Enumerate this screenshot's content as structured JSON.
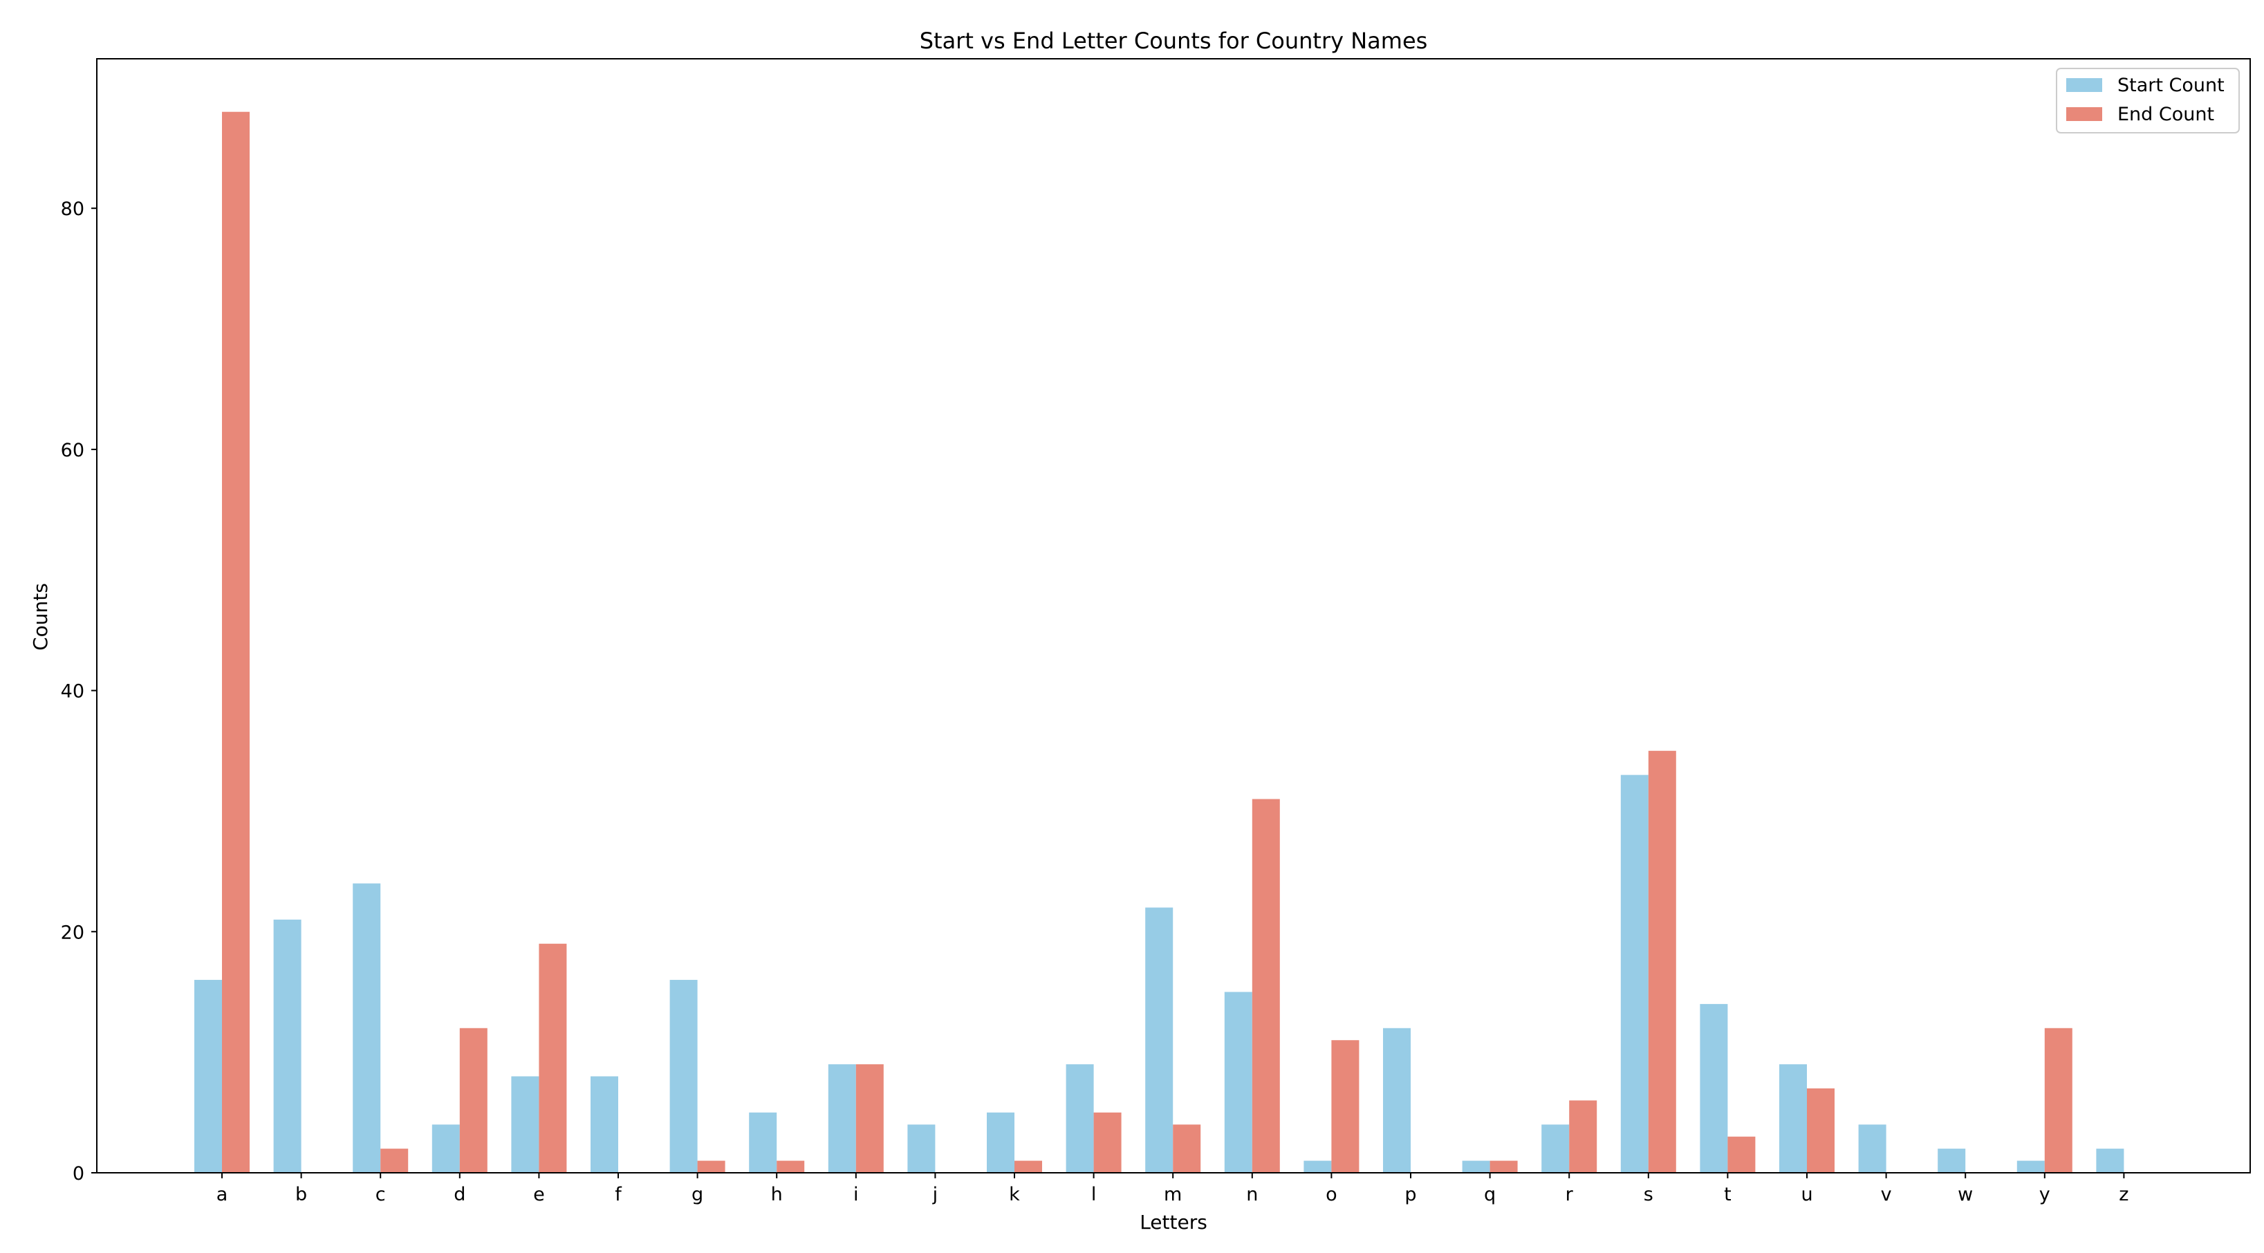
{
  "chart_data": {
    "type": "bar",
    "title": "Start vs End Letter Counts for Country Names",
    "xlabel": "Letters",
    "ylabel": "Counts",
    "categories": [
      "a",
      "b",
      "c",
      "d",
      "e",
      "f",
      "g",
      "h",
      "i",
      "j",
      "k",
      "l",
      "m",
      "n",
      "o",
      "p",
      "q",
      "r",
      "s",
      "t",
      "u",
      "v",
      "w",
      "y",
      "z"
    ],
    "series": [
      {
        "name": "Start Count",
        "color": "#97cce6",
        "values": [
          16,
          21,
          24,
          4,
          8,
          8,
          16,
          5,
          9,
          4,
          5,
          9,
          22,
          15,
          1,
          12,
          1,
          4,
          33,
          14,
          9,
          4,
          2,
          1,
          2
        ]
      },
      {
        "name": "End Count",
        "color": "#e88879",
        "values": [
          88,
          0,
          2,
          12,
          19,
          0,
          1,
          1,
          9,
          0,
          1,
          5,
          4,
          31,
          11,
          0,
          1,
          6,
          35,
          3,
          7,
          0,
          0,
          12,
          0
        ]
      }
    ],
    "ylim": [
      0,
      92.4
    ],
    "yticks": [
      0,
      20,
      40,
      60,
      80
    ],
    "grid": false,
    "legend_position": "top-right"
  }
}
